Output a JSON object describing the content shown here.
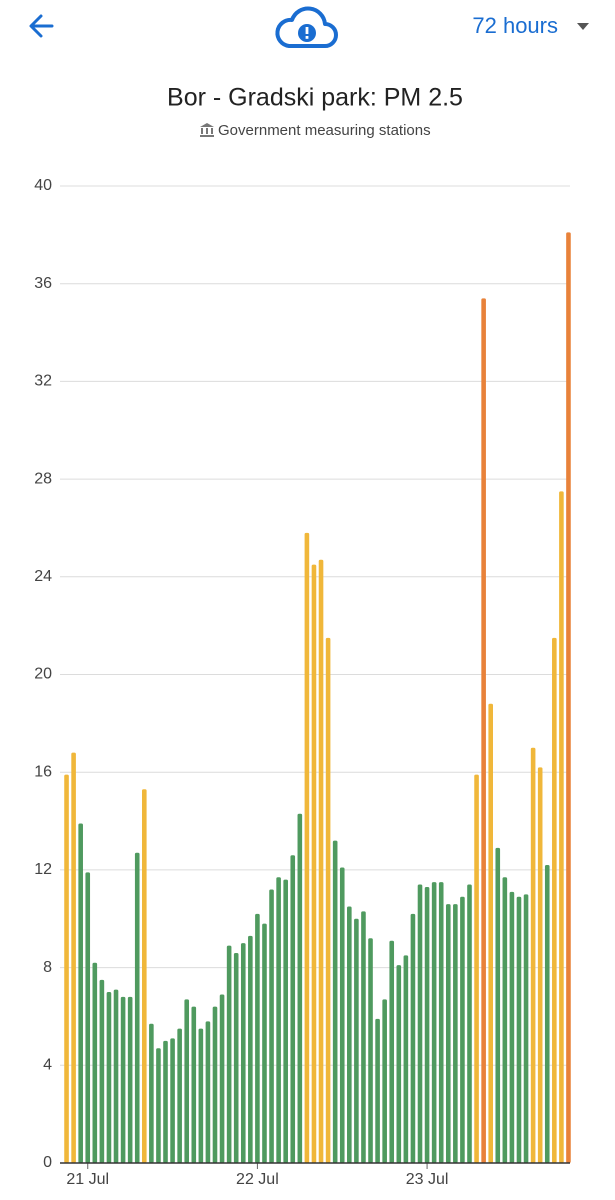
{
  "header": {
    "range": "72 hours"
  },
  "chart_data": {
    "type": "bar",
    "title": "Bor - Gradski park: PM 2.5",
    "subtitle": "Government measuring stations",
    "categories": [
      null,
      null,
      null,
      "21 Jul",
      null,
      null,
      null,
      null,
      null,
      null,
      null,
      null,
      null,
      null,
      null,
      null,
      null,
      null,
      null,
      null,
      null,
      null,
      null,
      null,
      null,
      null,
      null,
      "22 Jul",
      null,
      null,
      null,
      null,
      null,
      null,
      null,
      null,
      null,
      null,
      null,
      null,
      null,
      null,
      null,
      null,
      null,
      null,
      null,
      null,
      null,
      null,
      null,
      "23 Jul",
      null,
      null,
      null,
      null,
      null,
      null,
      null,
      null,
      null,
      null,
      null,
      null,
      null,
      null,
      null,
      null,
      null,
      null,
      null,
      null
    ],
    "values": [
      15.9,
      16.8,
      13.9,
      11.9,
      8.2,
      7.5,
      7.0,
      7.1,
      6.8,
      6.8,
      12.7,
      15.3,
      5.7,
      4.7,
      5.0,
      5.1,
      5.5,
      6.7,
      6.4,
      5.5,
      5.8,
      6.4,
      6.9,
      8.9,
      8.6,
      9.0,
      9.3,
      10.2,
      9.8,
      11.2,
      11.7,
      11.6,
      12.6,
      14.3,
      25.8,
      24.5,
      24.7,
      21.5,
      13.2,
      12.1,
      10.5,
      10.0,
      10.3,
      9.2,
      5.9,
      6.7,
      9.1,
      8.1,
      8.5,
      10.2,
      11.4,
      11.3,
      11.5,
      11.5,
      10.6,
      10.6,
      10.9,
      11.4,
      15.9,
      35.4,
      18.8,
      12.9,
      11.7,
      11.1,
      10.9,
      11.0,
      17.0,
      16.2,
      12.2,
      21.5,
      27.5,
      38.1
    ],
    "colors": [
      "#f0b73a",
      "#f0b73a",
      "#4f9a5f",
      "#4f9a5f",
      "#4f9a5f",
      "#4f9a5f",
      "#4f9a5f",
      "#4f9a5f",
      "#4f9a5f",
      "#4f9a5f",
      "#4f9a5f",
      "#f0b73a",
      "#4f9a5f",
      "#4f9a5f",
      "#4f9a5f",
      "#4f9a5f",
      "#4f9a5f",
      "#4f9a5f",
      "#4f9a5f",
      "#4f9a5f",
      "#4f9a5f",
      "#4f9a5f",
      "#4f9a5f",
      "#4f9a5f",
      "#4f9a5f",
      "#4f9a5f",
      "#4f9a5f",
      "#4f9a5f",
      "#4f9a5f",
      "#4f9a5f",
      "#4f9a5f",
      "#4f9a5f",
      "#4f9a5f",
      "#4f9a5f",
      "#f0b73a",
      "#f0b73a",
      "#f0b73a",
      "#f0b73a",
      "#4f9a5f",
      "#4f9a5f",
      "#4f9a5f",
      "#4f9a5f",
      "#4f9a5f",
      "#4f9a5f",
      "#4f9a5f",
      "#4f9a5f",
      "#4f9a5f",
      "#4f9a5f",
      "#4f9a5f",
      "#4f9a5f",
      "#4f9a5f",
      "#4f9a5f",
      "#4f9a5f",
      "#4f9a5f",
      "#4f9a5f",
      "#4f9a5f",
      "#4f9a5f",
      "#4f9a5f",
      "#f0b73a",
      "#e8823a",
      "#f0b73a",
      "#4f9a5f",
      "#4f9a5f",
      "#4f9a5f",
      "#4f9a5f",
      "#4f9a5f",
      "#f0b73a",
      "#f0b73a",
      "#4f9a5f",
      "#f0b73a",
      "#f0b73a",
      "#e8823a"
    ],
    "ylim": [
      0,
      40
    ],
    "yticks": [
      0,
      4,
      8,
      12,
      16,
      20,
      24,
      28,
      32,
      36,
      40
    ],
    "grid": true
  }
}
